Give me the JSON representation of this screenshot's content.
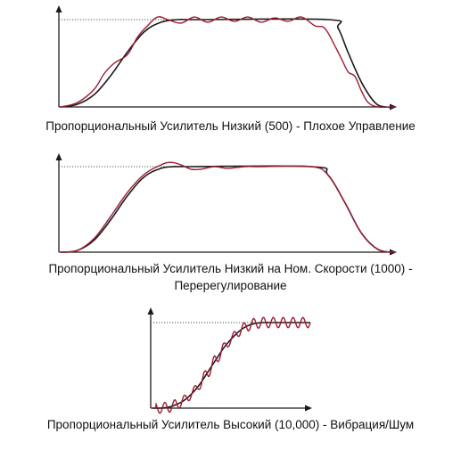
{
  "colors": {
    "axis": "#1a1a1a",
    "reference_curve": "#1a1a1a",
    "response_curve": "#9e1b32",
    "setpoint_line": "#555555",
    "caption_text": "#111111"
  },
  "chart_data": [
    {
      "type": "line",
      "title": "Пропорциональный Усилитель Низкий (500) - Плохое Управление",
      "xlabel": "",
      "ylabel": "",
      "x_range": [
        0,
        1
      ],
      "ylim": [
        0,
        1.15
      ],
      "setpoint": 1.0,
      "grid": false,
      "legend": "none",
      "series": [
        {
          "role": "reference",
          "x": [
            0,
            0.05,
            0.1,
            0.15,
            0.2,
            0.25,
            0.3,
            0.35,
            0.38,
            0.42,
            0.8,
            0.83,
            0.86,
            0.9,
            0.94,
            0.97,
            1.0
          ],
          "y": [
            0.0,
            0.03,
            0.14,
            0.36,
            0.63,
            0.86,
            0.97,
            1.0,
            1.0,
            1.0,
            1.0,
            0.9,
            0.62,
            0.28,
            0.05,
            0.0,
            0.0
          ]
        },
        {
          "role": "response",
          "x": [
            0,
            0.05,
            0.1,
            0.13,
            0.16,
            0.2,
            0.23,
            0.26,
            0.29,
            0.32,
            0.36,
            0.4,
            0.44,
            0.48,
            0.52,
            0.56,
            0.6,
            0.64,
            0.68,
            0.72,
            0.76,
            0.79,
            0.82,
            0.84,
            0.86,
            0.88,
            0.9,
            0.92,
            0.95,
            1.0
          ],
          "y": [
            0.0,
            0.05,
            0.2,
            0.38,
            0.5,
            0.6,
            0.8,
            0.93,
            1.03,
            1.0,
            0.96,
            1.03,
            0.97,
            1.03,
            0.98,
            1.03,
            0.97,
            1.02,
            0.98,
            1.03,
            0.93,
            0.9,
            0.7,
            0.55,
            0.4,
            0.35,
            0.18,
            0.05,
            0.0,
            0.0
          ]
        }
      ]
    },
    {
      "type": "line",
      "title": "Пропорциональный Усилитель Низкий на Ном. Скорости (1000) - Перерегулирование",
      "title_lines": [
        "Пропорциональный Усилитель Низкий на Ном. Скорости (1000) -",
        "Перерегулирование"
      ],
      "xlabel": "",
      "ylabel": "",
      "x_range": [
        0,
        1
      ],
      "ylim": [
        0,
        1.15
      ],
      "setpoint": 1.0,
      "grid": false,
      "legend": "none",
      "series": [
        {
          "role": "reference",
          "x": [
            0,
            0.05,
            0.1,
            0.15,
            0.2,
            0.25,
            0.3,
            0.34,
            0.38,
            0.75,
            0.8,
            0.85,
            0.9,
            0.95,
            1.0
          ],
          "y": [
            0.0,
            0.02,
            0.14,
            0.38,
            0.66,
            0.88,
            0.98,
            1.0,
            1.0,
            1.0,
            0.9,
            0.58,
            0.22,
            0.03,
            0.0
          ]
        },
        {
          "role": "response",
          "x": [
            0,
            0.05,
            0.1,
            0.15,
            0.2,
            0.25,
            0.3,
            0.33,
            0.36,
            0.39,
            0.42,
            0.46,
            0.5,
            0.55,
            0.6,
            0.75,
            0.8,
            0.85,
            0.9,
            0.95,
            1.0
          ],
          "y": [
            0.0,
            0.02,
            0.16,
            0.42,
            0.7,
            0.91,
            1.02,
            1.05,
            1.02,
            0.97,
            0.97,
            1.0,
            0.98,
            1.0,
            1.0,
            1.0,
            0.9,
            0.58,
            0.22,
            0.03,
            0.0
          ]
        }
      ]
    },
    {
      "type": "line",
      "title": "Пропорциональный Усилитель Высокий (10,000) - Вибрация/Шум",
      "xlabel": "",
      "ylabel": "",
      "x_range": [
        0,
        1
      ],
      "ylim": [
        0,
        1.2
      ],
      "setpoint": 1.0,
      "grid": false,
      "legend": "none",
      "series": [
        {
          "role": "reference",
          "x": [
            0,
            0.05,
            0.1,
            0.15,
            0.2,
            0.25,
            0.3,
            0.35,
            0.4,
            0.45,
            0.5,
            0.55,
            0.6,
            0.65,
            0.7,
            0.75,
            0.8,
            1.0
          ],
          "y": [
            0.0,
            0.0,
            0.01,
            0.04,
            0.09,
            0.17,
            0.28,
            0.42,
            0.56,
            0.7,
            0.81,
            0.9,
            0.96,
            0.99,
            1.0,
            1.0,
            1.0,
            1.0
          ]
        },
        {
          "role": "response",
          "oscillation_amplitude": 0.06,
          "oscillation_cycles": 16,
          "note_free": true,
          "x": [
            0,
            0.05,
            0.1,
            0.15,
            0.2,
            0.25,
            0.3,
            0.35,
            0.4,
            0.45,
            0.5,
            0.55,
            0.6,
            0.65,
            0.7,
            0.75,
            0.8,
            1.0
          ],
          "y": [
            0.0,
            0.0,
            0.01,
            0.04,
            0.09,
            0.17,
            0.28,
            0.42,
            0.56,
            0.7,
            0.81,
            0.9,
            0.96,
            0.99,
            1.0,
            1.0,
            1.0,
            1.0
          ]
        }
      ]
    }
  ]
}
